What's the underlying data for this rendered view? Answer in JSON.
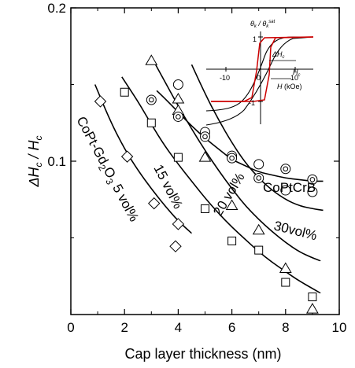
{
  "chart_data": {
    "type": "scatter",
    "title": "",
    "xlabel": "Cap layer thickness (nm)",
    "ylabel": "ΔHc / Hc",
    "xlim": [
      0,
      10
    ],
    "ylim": [
      0,
      0.2
    ],
    "x_ticks": [
      0,
      2,
      4,
      6,
      8,
      10
    ],
    "y_ticks": [
      0.1,
      0.2
    ],
    "x_tick_labels": [
      "0",
      "2",
      "4",
      "6",
      "8",
      "10"
    ],
    "y_tick_labels": [
      "0.1",
      "0.2"
    ],
    "grid": false,
    "series": [
      {
        "name": "CoPt-Gd2O3 5 vol%",
        "marker": "diamond",
        "points": [
          [
            1.1,
            0.139
          ],
          [
            2.1,
            0.103
          ],
          [
            3.1,
            0.0725
          ],
          [
            4.0,
            0.059
          ],
          [
            3.9,
            0.0445
          ]
        ],
        "fit": [
          [
            0.9,
            0.15
          ],
          [
            1.5,
            0.125
          ],
          [
            2.0,
            0.108
          ],
          [
            2.5,
            0.094
          ],
          [
            3.0,
            0.082
          ],
          [
            3.5,
            0.071
          ],
          [
            4.0,
            0.061
          ],
          [
            4.5,
            0.053
          ]
        ]
      },
      {
        "name": "15 vol%",
        "marker": "square",
        "points": [
          [
            2.0,
            0.145
          ],
          [
            3.0,
            0.125
          ],
          [
            4.0,
            0.1025
          ],
          [
            5.0,
            0.069
          ],
          [
            6.0,
            0.048
          ],
          [
            7.0,
            0.042
          ],
          [
            8.0,
            0.021
          ],
          [
            9.0,
            0.0115
          ]
        ],
        "fit": [
          [
            1.9,
            0.155
          ],
          [
            2.5,
            0.139
          ],
          [
            3.0,
            0.124
          ],
          [
            3.5,
            0.11
          ],
          [
            4.0,
            0.098
          ],
          [
            4.5,
            0.087
          ],
          [
            5.0,
            0.076
          ],
          [
            5.5,
            0.066
          ],
          [
            6.0,
            0.057
          ],
          [
            6.5,
            0.049
          ],
          [
            7.0,
            0.041
          ],
          [
            7.5,
            0.034
          ],
          [
            8.0,
            0.028
          ],
          [
            8.5,
            0.022
          ],
          [
            9.0,
            0.017
          ],
          [
            9.3,
            0.014
          ]
        ]
      },
      {
        "name": "20 vol%",
        "marker": "triangle",
        "points": [
          [
            3.0,
            0.1655
          ],
          [
            4.0,
            0.1405
          ],
          [
            4.0,
            0.133
          ],
          [
            5.0,
            0.1025
          ],
          [
            6.0,
            0.071
          ],
          [
            7.0,
            0.055
          ],
          [
            8.0,
            0.03
          ],
          [
            9.0,
            0.0035
          ]
        ],
        "fit": [
          [
            3.0,
            0.168
          ],
          [
            3.5,
            0.152
          ],
          [
            4.0,
            0.136
          ],
          [
            4.5,
            0.121
          ],
          [
            5.0,
            0.107
          ],
          [
            5.5,
            0.094
          ],
          [
            6.0,
            0.082
          ],
          [
            6.5,
            0.071
          ],
          [
            7.0,
            0.062
          ],
          [
            7.5,
            0.054
          ],
          [
            8.0,
            0.047
          ],
          [
            8.5,
            0.041
          ],
          [
            9.0,
            0.037
          ],
          [
            9.3,
            0.035
          ]
        ]
      },
      {
        "name": "30vol%",
        "marker": "circle",
        "points": [
          [
            4.0,
            0.15
          ],
          [
            5.0,
            0.119
          ],
          [
            6.0,
            0.1035
          ],
          [
            7.0,
            0.098
          ],
          [
            8.0,
            0.081
          ],
          [
            9.0,
            0.08
          ]
        ],
        "fit": [
          [
            4.5,
            0.163
          ],
          [
            5.0,
            0.144
          ],
          [
            5.5,
            0.127
          ],
          [
            6.0,
            0.112
          ],
          [
            6.5,
            0.099
          ],
          [
            7.0,
            0.089
          ],
          [
            7.5,
            0.081
          ],
          [
            8.0,
            0.075
          ],
          [
            8.5,
            0.071
          ],
          [
            9.0,
            0.069
          ],
          [
            9.4,
            0.068
          ]
        ]
      },
      {
        "name": "CoPtCrB",
        "marker": "circle-dot",
        "points": [
          [
            3.0,
            0.14
          ],
          [
            4.0,
            0.129
          ],
          [
            5.0,
            0.116
          ],
          [
            6.0,
            0.102
          ],
          [
            7.0,
            0.089
          ],
          [
            8.0,
            0.095
          ],
          [
            9.0,
            0.088
          ]
        ],
        "fit": [
          [
            3.2,
            0.146
          ],
          [
            3.5,
            0.141
          ],
          [
            4.0,
            0.132
          ],
          [
            4.5,
            0.123
          ],
          [
            5.0,
            0.115
          ],
          [
            5.5,
            0.108
          ],
          [
            6.0,
            0.101
          ],
          [
            6.5,
            0.097
          ],
          [
            7.0,
            0.093
          ],
          [
            7.5,
            0.091
          ],
          [
            8.0,
            0.089
          ],
          [
            8.5,
            0.088
          ],
          [
            9.0,
            0.087
          ],
          [
            9.4,
            0.087
          ]
        ]
      }
    ],
    "annotations": {
      "label_5": "CoPt-Gd",
      "label_5_sub": "2",
      "label_5_o": "O",
      "label_5_sub2": "3",
      "label_5_rest": " 5 vol%",
      "label_15": "15 vol%",
      "label_20": "20 vol%",
      "label_30": "30vol%",
      "label_cocrb": "CoPtCrB"
    },
    "inset": {
      "ylabel": "θk / θk^sat",
      "ylabel_main": "θ",
      "ylabel_sub": "k",
      "ylabel_slash": " / θ",
      "ylabel_sub2": "k",
      "ylabel_sup": "sat",
      "xlabel_var": "H",
      "xlabel_unit": " (kOe)",
      "x_tick_labels": [
        "-10",
        "0",
        "10"
      ],
      "y_tick_labels": [
        "1",
        "-1"
      ],
      "dhc_label": "ΔH",
      "dhc_sub": "c",
      "hc_label": "H",
      "hc_sub": "c",
      "colors": {
        "minor_loop": "#cc0000",
        "major_loop": "#000000"
      }
    }
  }
}
